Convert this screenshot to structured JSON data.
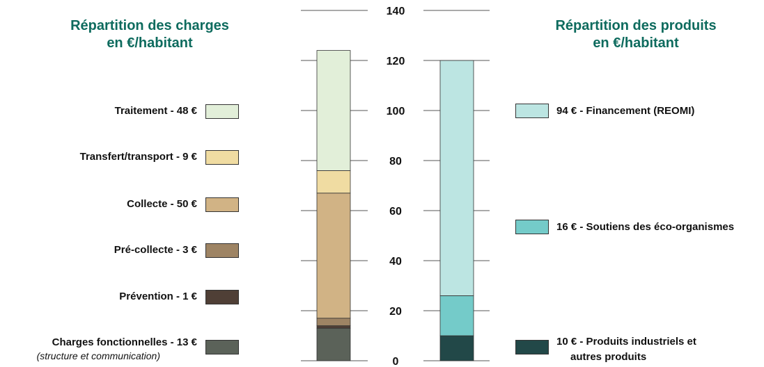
{
  "titles": {
    "left_line1": "Répartition des charges",
    "left_line2": "en €/habitant",
    "right_line1": "Répartition des produits",
    "right_line2": "en €/habitant"
  },
  "axis": {
    "ticks": [
      0,
      20,
      40,
      60,
      80,
      100,
      120,
      140
    ],
    "ylim": [
      0,
      140
    ]
  },
  "legend_left": [
    {
      "label": "Traitement - 48 €",
      "color": "#e2efd9"
    },
    {
      "label": "Transfert/transport - 9 €",
      "color": "#f0dca2"
    },
    {
      "label": "Collecte - 50 €",
      "color": "#d1b385"
    },
    {
      "label": "Pré-collecte - 3 €",
      "color": "#9e8464"
    },
    {
      "label": "Prévention - 1 €",
      "color": "#4f3f36"
    },
    {
      "label": "Charges fonctionnelles - 13 €",
      "color": "#5b6259"
    }
  ],
  "legend_left_note": "(structure et communication)",
  "legend_right": [
    {
      "label": "94 € - Financement (REOMI)",
      "color": "#bce5e2"
    },
    {
      "label": "16 € - Soutiens des éco-organismes",
      "color": "#74cbc9"
    },
    {
      "label": "10 € - Produits industriels et",
      "color": "#224848"
    }
  ],
  "legend_right_note": "autres produits",
  "chart_data": {
    "type": "bar",
    "stacked": true,
    "categories": [
      "Répartition des charges en €/habitant",
      "Répartition des produits en €/habitant"
    ],
    "ylim": [
      0,
      140
    ],
    "ticks": [
      0,
      20,
      40,
      60,
      80,
      100,
      120,
      140
    ],
    "bars": [
      {
        "segments": [
          {
            "name": "Charges fonctionnelles - 13 €",
            "value": 13,
            "color": "#5b6259"
          },
          {
            "name": "Prévention - 1 €",
            "value": 1,
            "color": "#4f3f36"
          },
          {
            "name": "Pré-collecte - 3 €",
            "value": 3,
            "color": "#9e8464"
          },
          {
            "name": "Collecte - 50 €",
            "value": 50,
            "color": "#d1b385"
          },
          {
            "name": "Transfert/transport - 9 €",
            "value": 9,
            "color": "#f0dca2"
          },
          {
            "name": "Traitement - 48 €",
            "value": 48,
            "color": "#e2efd9"
          }
        ]
      },
      {
        "segments": [
          {
            "name": "10 € - Produits industriels et autres produits",
            "value": 10,
            "color": "#224848"
          },
          {
            "name": "16 € - Soutiens des éco-organismes",
            "value": 16,
            "color": "#74cbc9"
          },
          {
            "name": "94 € - Financement (REOMI)",
            "value": 94,
            "color": "#bce5e2"
          }
        ]
      }
    ]
  }
}
